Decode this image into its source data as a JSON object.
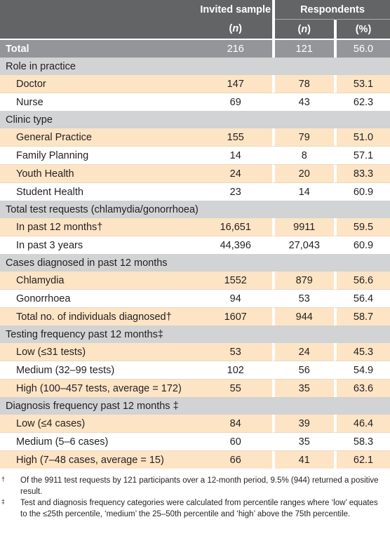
{
  "header": {
    "invited_title": "Invited sample",
    "respondents_title": "Respondents",
    "invited_n": "(n)",
    "resp_n": "(n)",
    "resp_pct": "(%)"
  },
  "total": {
    "label": "Total",
    "invited": "216",
    "resp_n": "121",
    "resp_pct": "56.0"
  },
  "sections": [
    {
      "title": "Role in practice",
      "rows": [
        {
          "label": "Doctor",
          "invited": "147",
          "resp_n": "78",
          "resp_pct": "53.1"
        },
        {
          "label": "Nurse",
          "invited": "69",
          "resp_n": "43",
          "resp_pct": "62.3"
        }
      ]
    },
    {
      "title": "Clinic type",
      "rows": [
        {
          "label": "General Practice",
          "invited": "155",
          "resp_n": "79",
          "resp_pct": "51.0"
        },
        {
          "label": "Family Planning",
          "invited": "14",
          "resp_n": "8",
          "resp_pct": "57.1"
        },
        {
          "label": "Youth Health",
          "invited": "24",
          "resp_n": "20",
          "resp_pct": "83.3"
        },
        {
          "label": "Student Health",
          "invited": "23",
          "resp_n": "14",
          "resp_pct": "60.9"
        }
      ]
    },
    {
      "title": "Total test requests (chlamydia/gonorrhoea)",
      "rows": [
        {
          "label": "In past 12 months†",
          "invited": "16,651",
          "resp_n": "9911",
          "resp_pct": "59.5"
        },
        {
          "label": "In past 3 years",
          "invited": "44,396",
          "resp_n": "27,043",
          "resp_pct": "60.9"
        }
      ]
    },
    {
      "title": "Cases diagnosed in past 12 months",
      "rows": [
        {
          "label": "Chlamydia",
          "invited": "1552",
          "resp_n": "879",
          "resp_pct": "56.6"
        },
        {
          "label": "Gonorrhoea",
          "invited": "94",
          "resp_n": "53",
          "resp_pct": "56.4"
        },
        {
          "label": "Total no. of individuals diagnosed†",
          "invited": "1607",
          "resp_n": "944",
          "resp_pct": "58.7"
        }
      ]
    },
    {
      "title": "Testing frequency past 12 months‡",
      "rows": [
        {
          "label": "Low (≤31 tests)",
          "invited": "53",
          "resp_n": "24",
          "resp_pct": "45.3"
        },
        {
          "label": "Medium (32–99 tests)",
          "invited": "102",
          "resp_n": "56",
          "resp_pct": "54.9"
        },
        {
          "label": "High (100–457 tests, average = 172)",
          "invited": "55",
          "resp_n": "35",
          "resp_pct": "63.6"
        }
      ]
    },
    {
      "title": "Diagnosis frequency past 12 months ‡",
      "rows": [
        {
          "label": "Low (≤4 cases)",
          "invited": "84",
          "resp_n": "39",
          "resp_pct": "46.4"
        },
        {
          "label": "Medium (5–6 cases)",
          "invited": "60",
          "resp_n": "35",
          "resp_pct": "58.3"
        },
        {
          "label": "High (7–48 cases, average = 15)",
          "invited": "66",
          "resp_n": "41",
          "resp_pct": "62.1"
        }
      ]
    }
  ],
  "footnotes": [
    {
      "mark": "†",
      "text": "Of the 9911 test requests by 121 participants over a 12-month period, 9.5% (944) returned a positive result."
    },
    {
      "mark": "‡",
      "text": "Test and diagnosis frequency categories were calculated from percentile ranges where ‘low’ equates to the ≤25th percentile, ‘medium’ the 25–50th percentile and ‘high’ above the 75th percentile."
    }
  ],
  "colors": {
    "header_bg": "#636466",
    "total_bg": "#939598",
    "section_bg": "#d1d3d4",
    "alt_row_bg": "#fde4c5"
  }
}
